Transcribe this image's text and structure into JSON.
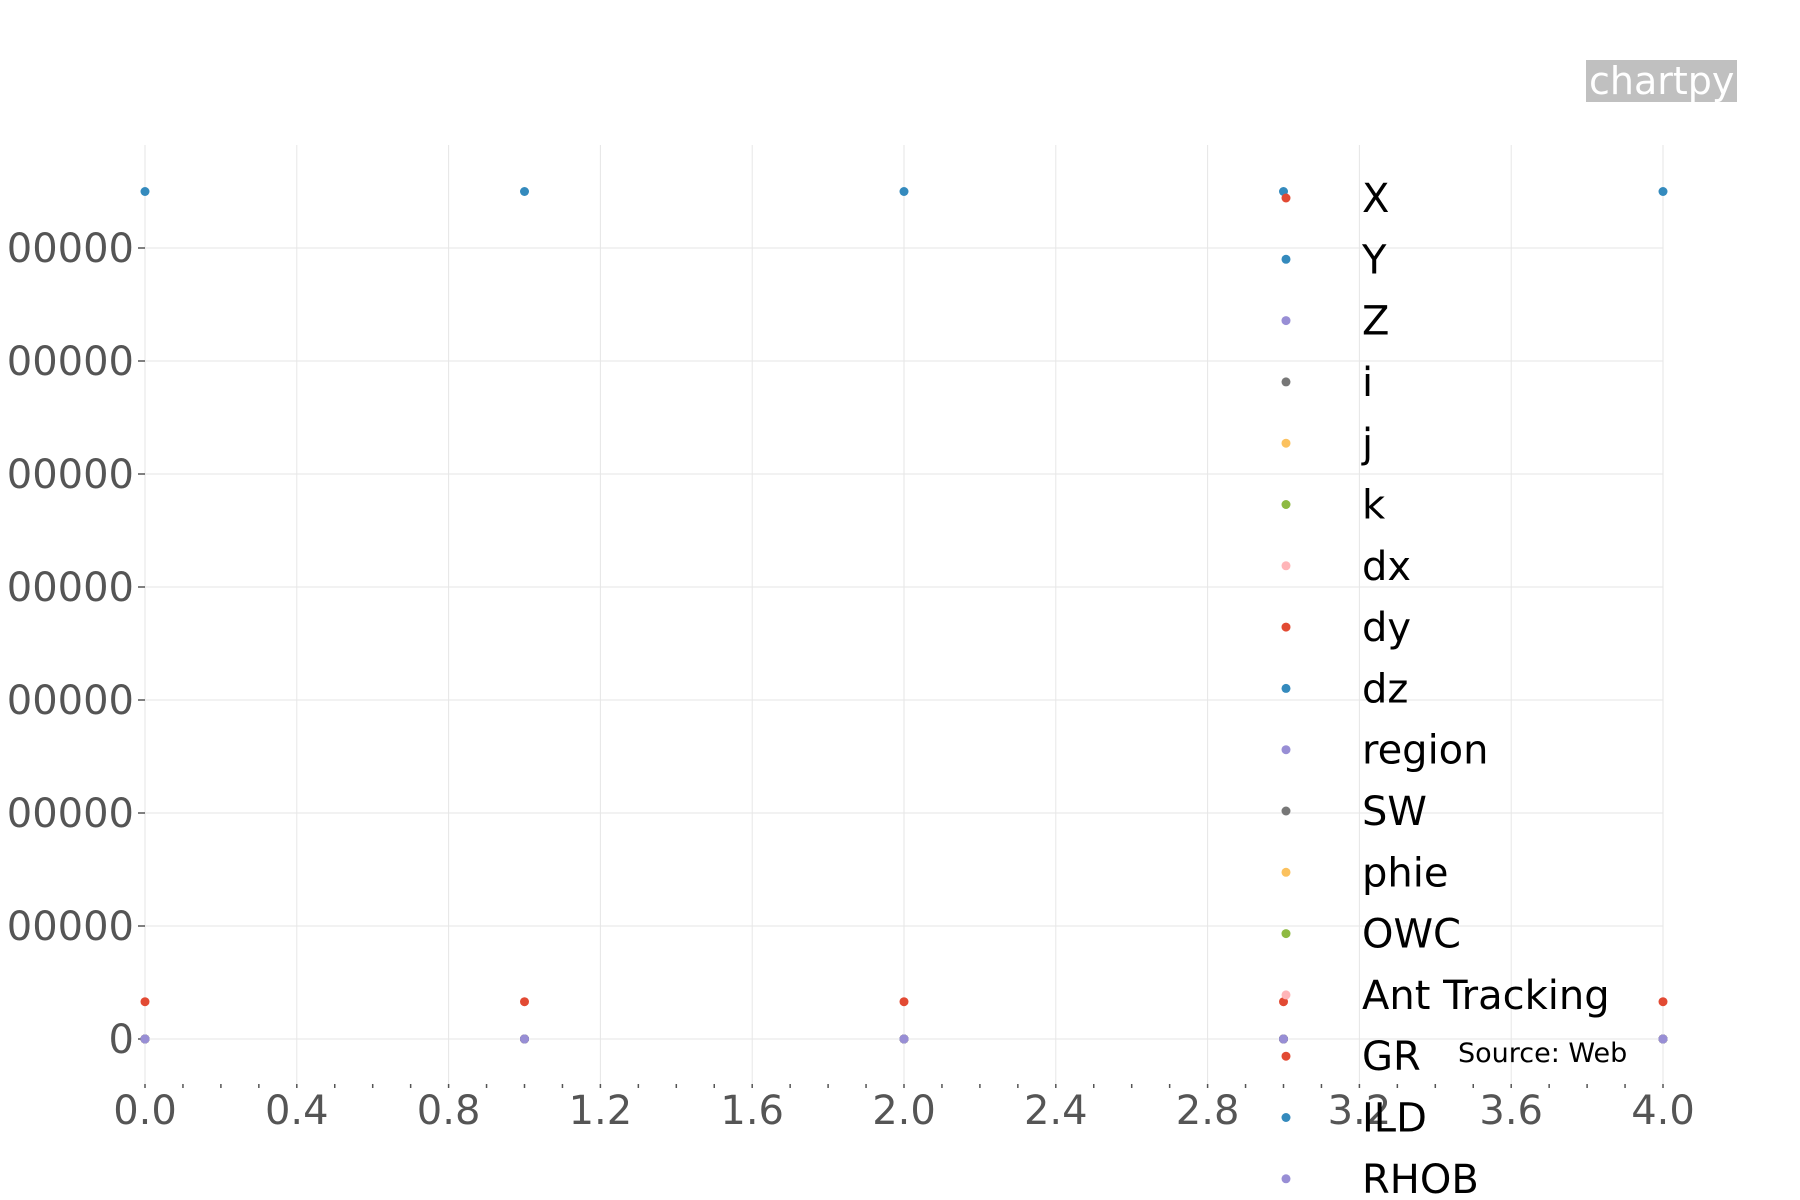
{
  "watermark": "chartpy",
  "source_label": "Source: Web",
  "colors": {
    "grid": "#e6e6e6",
    "tick_text": "#555555",
    "palette": [
      "#E24A33",
      "#348ABD",
      "#988ED5",
      "#777777",
      "#FBC15E",
      "#8EBA42",
      "#FFB5B8"
    ]
  },
  "chart_data": {
    "type": "scatter",
    "x": [
      0,
      1,
      2,
      3,
      4
    ],
    "xlim": [
      0,
      4
    ],
    "ylim": [
      -400000,
      7500000
    ],
    "x_ticks": [
      "0.0",
      "0.4",
      "0.8",
      "1.2",
      "1.6",
      "2.0",
      "2.4",
      "2.8",
      "3.2",
      "3.6",
      "4.0"
    ],
    "x_tick_values": [
      0,
      0.4,
      0.8,
      1.2,
      1.6,
      2.0,
      2.4,
      2.8,
      3.2,
      3.6,
      4.0
    ],
    "y_ticks": [
      "0",
      "00000",
      "00000",
      "00000",
      "00000",
      "00000",
      "00000",
      "00000"
    ],
    "y_tick_values": [
      0,
      1000000,
      2000000,
      3000000,
      4000000,
      5000000,
      6000000,
      7000000
    ],
    "grid": true,
    "legend_position": "right",
    "series": [
      {
        "name": "X",
        "color": "#E24A33",
        "values": [
          330000,
          330000,
          330000,
          330000,
          330000
        ]
      },
      {
        "name": "Y",
        "color": "#348ABD",
        "values": [
          7500000,
          7500000,
          7500000,
          7500000,
          7500000
        ]
      },
      {
        "name": "Z",
        "color": "#988ED5",
        "values": [
          0,
          0,
          0,
          0,
          0
        ]
      },
      {
        "name": "i",
        "color": "#777777",
        "values": [
          0,
          0,
          0,
          0,
          0
        ]
      },
      {
        "name": "j",
        "color": "#FBC15E",
        "values": [
          0,
          0,
          0,
          0,
          0
        ]
      },
      {
        "name": "k",
        "color": "#8EBA42",
        "values": [
          0,
          0,
          0,
          0,
          0
        ]
      },
      {
        "name": "dx",
        "color": "#FFB5B8",
        "values": [
          0,
          0,
          0,
          0,
          0
        ]
      },
      {
        "name": "dy",
        "color": "#E24A33",
        "values": [
          0,
          0,
          0,
          0,
          0
        ]
      },
      {
        "name": "dz",
        "color": "#348ABD",
        "values": [
          0,
          0,
          0,
          0,
          0
        ]
      },
      {
        "name": "region",
        "color": "#988ED5",
        "values": [
          0,
          0,
          0,
          0,
          0
        ]
      },
      {
        "name": "SW",
        "color": "#777777",
        "values": [
          0,
          0,
          0,
          0,
          0
        ]
      },
      {
        "name": "phie",
        "color": "#FBC15E",
        "values": [
          0,
          0,
          0,
          0,
          0
        ]
      },
      {
        "name": "OWC",
        "color": "#8EBA42",
        "values": [
          0,
          0,
          0,
          0,
          0
        ]
      },
      {
        "name": "Ant Tracking",
        "color": "#FFB5B8",
        "values": [
          0,
          0,
          0,
          0,
          0
        ]
      },
      {
        "name": "GR",
        "color": "#E24A33",
        "values": [
          0,
          0,
          0,
          0,
          0
        ]
      },
      {
        "name": "ILD",
        "color": "#348ABD",
        "values": [
          0,
          0,
          0,
          0,
          0
        ]
      },
      {
        "name": "RHOB",
        "color": "#988ED5",
        "values": [
          0,
          0,
          0,
          0,
          0
        ]
      }
    ]
  }
}
